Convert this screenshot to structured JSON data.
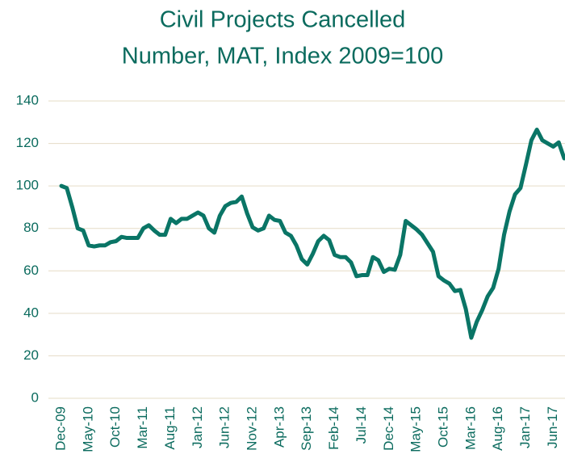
{
  "chart_data": {
    "type": "line",
    "title": "Civil Projects Cancelled",
    "subtitle": "Number, MAT, Index 2009=100",
    "categories": [
      "Dec-09",
      null,
      null,
      null,
      null,
      "May-10",
      null,
      null,
      null,
      null,
      "Oct-10",
      null,
      null,
      null,
      null,
      "Mar-11",
      null,
      null,
      null,
      null,
      "Aug-11",
      null,
      null,
      null,
      null,
      "Jan-12",
      null,
      null,
      null,
      null,
      "Jun-12",
      null,
      null,
      null,
      null,
      "Nov-12",
      null,
      null,
      null,
      null,
      "Apr-13",
      null,
      null,
      null,
      null,
      "Sep-13",
      null,
      null,
      null,
      null,
      "Feb-14",
      null,
      null,
      null,
      null,
      "Jul-14",
      null,
      null,
      null,
      null,
      "Dec-14",
      null,
      null,
      null,
      null,
      "May-15",
      null,
      null,
      null,
      null,
      "Oct-15",
      null,
      null,
      null,
      null,
      "Mar-16",
      null,
      null,
      null,
      null,
      "Aug-16",
      null,
      null,
      null,
      null,
      "Jan-17",
      null,
      null,
      null,
      null,
      "Jun-17",
      null,
      null
    ],
    "values": [
      100,
      99,
      90,
      80,
      79,
      72,
      71.5,
      72,
      72,
      73.5,
      74,
      76,
      75.5,
      75.5,
      75.5,
      80,
      81.5,
      79,
      77,
      77,
      84.5,
      82.5,
      84.5,
      84.5,
      86,
      87.5,
      86,
      80,
      78,
      86,
      90.5,
      92,
      92.5,
      95,
      87,
      80.5,
      79,
      80,
      86,
      84,
      83.5,
      78,
      76.5,
      72,
      65.5,
      63,
      68,
      74,
      76.5,
      74.5,
      67.5,
      66.5,
      66.5,
      64,
      57.5,
      58,
      58,
      66.5,
      65,
      59.5,
      61,
      60.5,
      67.5,
      83.5,
      81.5,
      79.5,
      77,
      73,
      69,
      57.5,
      55.5,
      54,
      50.5,
      51,
      42,
      28.5,
      36,
      41.5,
      48,
      52,
      61,
      77,
      88,
      96,
      99,
      110,
      121.5,
      126.5,
      121.5,
      120,
      118.5,
      120.5,
      113
    ],
    "color": "#0a7566",
    "ylim": [
      0,
      140
    ],
    "yticks": [
      0,
      20,
      40,
      60,
      80,
      100,
      120,
      140
    ],
    "grid": true
  }
}
